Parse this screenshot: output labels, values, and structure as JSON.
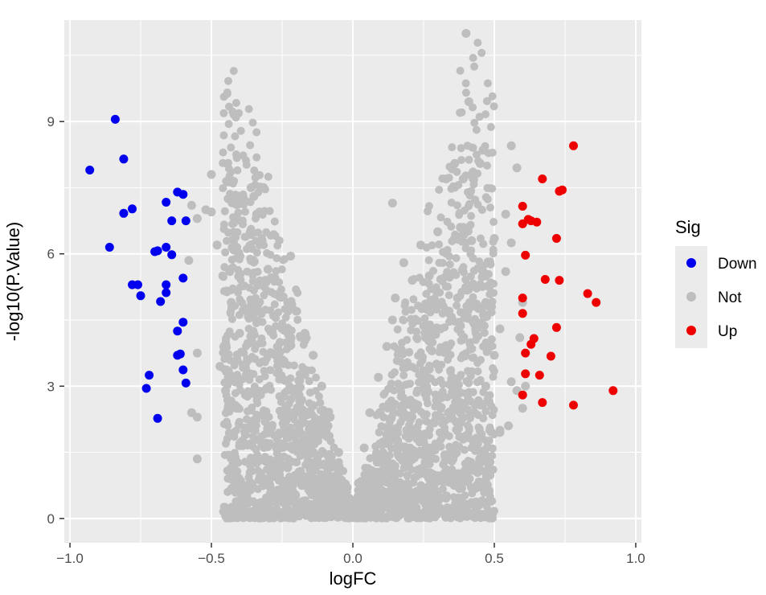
{
  "chart_data": {
    "type": "scatter",
    "title": "",
    "xlabel": "logFC",
    "ylabel": "-log10(P.Value)",
    "xlim": [
      -1.02,
      1.02
    ],
    "ylim": [
      -0.55,
      11.3
    ],
    "x_ticks": [
      -1.0,
      -0.5,
      0.0,
      0.5,
      1.0
    ],
    "x_tick_labels": [
      "−1.0",
      "−0.5",
      "0.0",
      "0.5",
      "1.0"
    ],
    "y_ticks": [
      0,
      3,
      6,
      9
    ],
    "y_tick_labels": [
      "0",
      "3",
      "6",
      "9"
    ],
    "grid": true,
    "legend": {
      "title": "Sig",
      "position": "right",
      "entries": [
        {
          "label": "Down",
          "color": "#0000ee"
        },
        {
          "label": "Not",
          "color": "#bebebe"
        },
        {
          "label": "Up",
          "color": "#ee0000"
        }
      ]
    },
    "series": [
      {
        "name": "Down",
        "color": "#0000ee",
        "points": [
          [
            -0.93,
            7.9
          ],
          [
            -0.84,
            9.05
          ],
          [
            -0.81,
            8.15
          ],
          [
            -0.86,
            6.15
          ],
          [
            -0.81,
            6.92
          ],
          [
            -0.78,
            7.02
          ],
          [
            -0.62,
            7.4
          ],
          [
            -0.6,
            7.35
          ],
          [
            -0.66,
            7.17
          ],
          [
            -0.64,
            6.75
          ],
          [
            -0.59,
            6.75
          ],
          [
            -0.7,
            6.05
          ],
          [
            -0.69,
            6.07
          ],
          [
            -0.66,
            6.15
          ],
          [
            -0.64,
            5.98
          ],
          [
            -0.6,
            5.45
          ],
          [
            -0.78,
            5.3
          ],
          [
            -0.76,
            5.3
          ],
          [
            -0.75,
            5.05
          ],
          [
            -0.66,
            5.3
          ],
          [
            -0.66,
            5.12
          ],
          [
            -0.68,
            4.92
          ],
          [
            -0.6,
            4.45
          ],
          [
            -0.62,
            4.25
          ],
          [
            -0.62,
            3.7
          ],
          [
            -0.61,
            3.73
          ],
          [
            -0.6,
            3.37
          ],
          [
            -0.72,
            3.25
          ],
          [
            -0.59,
            3.07
          ],
          [
            -0.73,
            2.95
          ],
          [
            -0.69,
            2.27
          ]
        ]
      },
      {
        "name": "Not",
        "color": "#bebebe",
        "points": [
          [
            0.4,
            11.0
          ],
          [
            0.41,
            9.45
          ],
          [
            0.46,
            8.35
          ],
          [
            0.56,
            8.45
          ],
          [
            0.58,
            7.95
          ],
          [
            0.45,
            8.05
          ],
          [
            0.36,
            8.05
          ],
          [
            0.39,
            7.7
          ],
          [
            0.33,
            7.7
          ],
          [
            0.14,
            7.15
          ],
          [
            -0.5,
            7.8
          ],
          [
            -0.36,
            7.5
          ],
          [
            -0.35,
            7.3
          ],
          [
            -0.33,
            6.95
          ],
          [
            -0.34,
            6.9
          ],
          [
            -0.5,
            6.95
          ],
          [
            -0.52,
            7.0
          ],
          [
            -0.55,
            6.8
          ],
          [
            -0.57,
            7.1
          ],
          [
            -0.58,
            5.85
          ],
          [
            -0.3,
            5.65
          ],
          [
            -0.31,
            5.4
          ],
          [
            -0.22,
            5.95
          ],
          [
            -0.55,
            3.75
          ],
          [
            -0.57,
            2.4
          ],
          [
            -0.55,
            2.3
          ],
          [
            -0.55,
            1.35
          ],
          [
            -0.44,
            2.55
          ],
          [
            -0.45,
            2.9
          ],
          [
            -0.47,
            3.45
          ],
          [
            0.52,
            2.0
          ],
          [
            0.52,
            1.95
          ],
          [
            0.55,
            2.1
          ],
          [
            0.56,
            3.1
          ],
          [
            0.54,
            5.6
          ],
          [
            0.56,
            6.25
          ],
          [
            0.54,
            6.9
          ],
          [
            0.5,
            6.35
          ],
          [
            0.6,
            4.9
          ],
          [
            0.59,
            4.1
          ],
          [
            0.6,
            2.5
          ],
          [
            0.58,
            2.9
          ],
          [
            0.61,
            3.0
          ],
          [
            0.45,
            5.3
          ],
          [
            0.47,
            4.9
          ],
          [
            0.33,
            6.05
          ],
          [
            0.3,
            6.5
          ],
          [
            0.24,
            6.2
          ],
          [
            0.18,
            5.8
          ],
          [
            0.21,
            5.4
          ],
          [
            0.15,
            5.0
          ],
          [
            0.14,
            4.5
          ],
          [
            0.12,
            3.9
          ],
          [
            0.09,
            3.2
          ],
          [
            0.06,
            2.4
          ],
          [
            0.04,
            1.6
          ],
          [
            0.02,
            0.8
          ],
          [
            0.0,
            0.1
          ],
          [
            -0.02,
            0.7
          ],
          [
            -0.05,
            1.5
          ],
          [
            -0.08,
            2.3
          ],
          [
            -0.11,
            3.0
          ],
          [
            -0.14,
            3.7
          ],
          [
            -0.17,
            4.2
          ],
          [
            -0.2,
            4.7
          ],
          [
            -0.23,
            4.9
          ],
          [
            -0.26,
            5.1
          ],
          [
            -0.28,
            4.6
          ],
          [
            -0.25,
            3.6
          ],
          [
            -0.22,
            2.7
          ],
          [
            -0.19,
            2.0
          ],
          [
            -0.16,
            1.4
          ],
          [
            -0.12,
            0.9
          ],
          [
            -0.08,
            0.5
          ],
          [
            0.08,
            0.55
          ],
          [
            0.12,
            0.95
          ],
          [
            0.16,
            1.45
          ],
          [
            0.19,
            2.0
          ],
          [
            0.22,
            2.6
          ],
          [
            0.25,
            3.2
          ],
          [
            0.28,
            3.8
          ],
          [
            0.31,
            4.3
          ],
          [
            0.34,
            4.7
          ],
          [
            0.37,
            5.0
          ],
          [
            0.41,
            5.2
          ],
          [
            0.43,
            4.4
          ],
          [
            0.39,
            3.7
          ],
          [
            0.35,
            3.0
          ],
          [
            0.31,
            2.3
          ],
          [
            0.27,
            1.6
          ],
          [
            0.23,
            1.1
          ],
          [
            0.18,
            0.7
          ],
          [
            -0.18,
            0.75
          ],
          [
            -0.23,
            1.15
          ],
          [
            -0.27,
            1.6
          ],
          [
            -0.31,
            2.2
          ],
          [
            -0.34,
            2.9
          ],
          [
            -0.37,
            3.6
          ],
          [
            -0.4,
            4.2
          ],
          [
            -0.43,
            4.9
          ],
          [
            -0.46,
            5.5
          ],
          [
            -0.42,
            6.2
          ],
          [
            -0.48,
            6.2
          ],
          [
            -0.44,
            3.2
          ],
          [
            -0.41,
            2.5
          ],
          [
            -0.38,
            1.9
          ],
          [
            -0.34,
            1.3
          ],
          [
            -0.3,
            0.9
          ],
          [
            0.3,
            0.85
          ],
          [
            0.35,
            1.3
          ],
          [
            0.39,
            1.8
          ],
          [
            0.43,
            2.4
          ],
          [
            0.47,
            3.0
          ],
          [
            0.5,
            3.7
          ],
          [
            0.52,
            4.3
          ],
          [
            0.49,
            4.8
          ],
          [
            0.46,
            5.6
          ],
          [
            0.42,
            6.3
          ],
          [
            0.38,
            6.6
          ],
          [
            0.27,
            5.5
          ]
        ]
      },
      {
        "name": "Up",
        "color": "#ee0000",
        "points": [
          [
            0.78,
            8.45
          ],
          [
            0.67,
            7.7
          ],
          [
            0.74,
            7.45
          ],
          [
            0.73,
            7.42
          ],
          [
            0.6,
            7.08
          ],
          [
            0.62,
            6.78
          ],
          [
            0.6,
            6.68
          ],
          [
            0.65,
            6.72
          ],
          [
            0.63,
            6.75
          ],
          [
            0.72,
            6.35
          ],
          [
            0.61,
            5.97
          ],
          [
            0.68,
            5.42
          ],
          [
            0.73,
            5.4
          ],
          [
            0.83,
            5.1
          ],
          [
            0.86,
            4.9
          ],
          [
            0.6,
            5.0
          ],
          [
            0.6,
            4.65
          ],
          [
            0.72,
            4.33
          ],
          [
            0.64,
            4.08
          ],
          [
            0.63,
            3.95
          ],
          [
            0.61,
            3.75
          ],
          [
            0.7,
            3.68
          ],
          [
            0.61,
            3.28
          ],
          [
            0.66,
            3.25
          ],
          [
            0.92,
            2.9
          ],
          [
            0.6,
            2.8
          ],
          [
            0.67,
            2.63
          ],
          [
            0.78,
            2.57
          ]
        ]
      }
    ]
  }
}
